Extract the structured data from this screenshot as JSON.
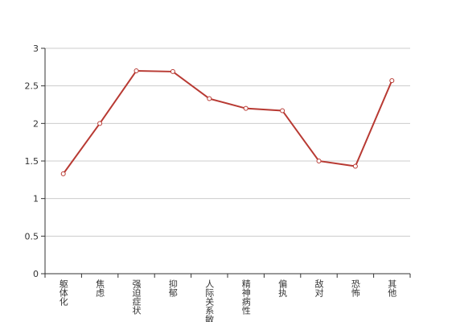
{
  "chart_data": {
    "type": "line",
    "categories": [
      "躯体化",
      "焦虑",
      "强迫症状",
      "抑郁",
      "人际关系敏感",
      "精神病性",
      "偏执",
      "敌对",
      "恐怖",
      "其他"
    ],
    "series": [
      {
        "color": "#b83a33",
        "values": [
          1.33,
          2.0,
          2.7,
          2.69,
          2.33,
          2.2,
          2.17,
          1.5,
          1.43,
          2.57
        ]
      }
    ],
    "ylim": [
      0,
      3
    ],
    "yticks": [
      0,
      0.5,
      1,
      1.5,
      2,
      2.5,
      3
    ],
    "grid": true
  }
}
